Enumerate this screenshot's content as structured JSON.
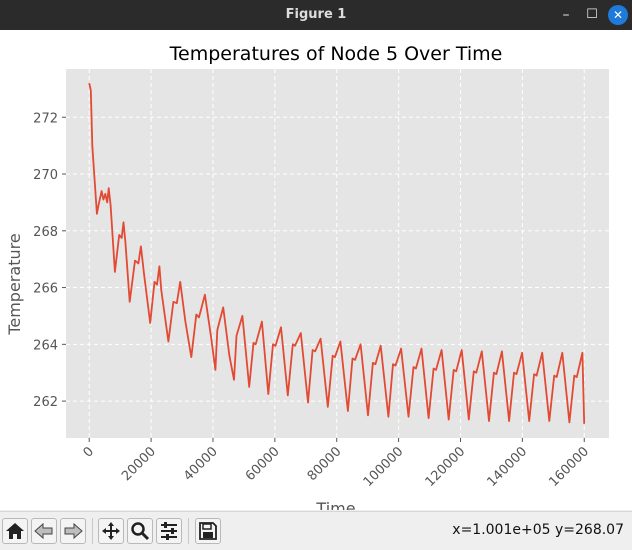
{
  "window": {
    "title": "Figure 1",
    "minimize_label": "–",
    "maximize_label": "☐",
    "close_label": "✕"
  },
  "status": {
    "coordinates": "x=1.001e+05 y=268.07"
  },
  "toolbar": {
    "buttons": [
      {
        "icon": "home-icon"
      },
      {
        "icon": "back-arrow-icon"
      },
      {
        "icon": "forward-arrow-icon"
      },
      {
        "icon": "pan-move-icon"
      },
      {
        "icon": "zoom-icon"
      },
      {
        "icon": "configure-subplots-icon"
      },
      {
        "icon": "save-icon"
      }
    ]
  },
  "chart_data": {
    "type": "line",
    "title": "Temperatures of Node 5 Over Time",
    "xlabel": "Time",
    "ylabel": "Temperature",
    "xlim": [
      -7500,
      168000
    ],
    "ylim": [
      260.7,
      273.7
    ],
    "xticks": [
      0,
      20000,
      40000,
      60000,
      80000,
      100000,
      120000,
      140000,
      160000
    ],
    "yticks": [
      262,
      264,
      266,
      268,
      270,
      272
    ],
    "grid": true,
    "line_color": "#e24a33",
    "background_color": "#e5e5e5",
    "series": [
      {
        "x": [
          0,
          500,
          1000,
          2500,
          3000,
          4000,
          4600,
          5200,
          5800,
          6300,
          6900,
          8300,
          9700,
          10500,
          11100,
          11700,
          13100,
          14800,
          15900,
          16700,
          17800,
          19700,
          21100,
          21900,
          22700,
          23300,
          25600,
          27200,
          28300,
          29400,
          31100,
          33000,
          34600,
          35500,
          37400,
          39400,
          40800,
          41400,
          43300,
          45300,
          46800,
          47600,
          49500,
          51700,
          53100,
          53800,
          55800,
          57900,
          59400,
          60200,
          62000,
          64200,
          65800,
          66500,
          68400,
          70700,
          72200,
          73000,
          74800,
          77100,
          78700,
          79400,
          81200,
          83600,
          85100,
          85900,
          87700,
          90100,
          91700,
          92500,
          94200,
          96700,
          98200,
          99000,
          100800,
          103200,
          104800,
          105600,
          107400,
          109700,
          111300,
          112100,
          113900,
          116200,
          117800,
          118600,
          120400,
          122700,
          124300,
          125100,
          126900,
          129200,
          130800,
          131600,
          133400,
          135700,
          137300,
          138100,
          139900,
          142200,
          143800,
          144600,
          146400,
          148700,
          150300,
          151100,
          152900,
          155200,
          156800,
          157600,
          159400,
          160000
        ],
        "y": [
          273.2,
          272.95,
          271.0,
          268.6,
          268.9,
          269.4,
          269.1,
          269.3,
          269.0,
          269.5,
          268.9,
          266.55,
          267.85,
          267.75,
          268.3,
          267.6,
          265.5,
          266.95,
          266.85,
          267.45,
          266.4,
          264.75,
          266.2,
          266.1,
          266.75,
          265.9,
          264.1,
          265.5,
          265.45,
          266.2,
          264.8,
          263.55,
          265.05,
          264.95,
          265.75,
          264.25,
          263.1,
          264.5,
          265.3,
          263.6,
          262.75,
          264.3,
          265.0,
          262.5,
          264.05,
          264.0,
          264.8,
          262.25,
          264.0,
          263.95,
          264.6,
          262.2,
          264.0,
          263.95,
          264.4,
          261.95,
          263.8,
          263.75,
          264.2,
          261.8,
          263.6,
          263.55,
          264.1,
          261.65,
          263.5,
          263.45,
          264.0,
          261.5,
          263.35,
          263.3,
          263.95,
          261.45,
          263.3,
          263.25,
          263.85,
          261.45,
          263.2,
          263.15,
          263.85,
          261.4,
          263.15,
          263.1,
          263.8,
          261.35,
          263.1,
          263.05,
          263.8,
          261.35,
          263.05,
          263.0,
          263.75,
          261.3,
          263.0,
          262.95,
          263.75,
          261.3,
          263.0,
          262.95,
          263.7,
          261.3,
          262.95,
          262.9,
          263.7,
          261.3,
          262.9,
          262.85,
          263.7,
          261.25,
          262.9,
          262.85,
          263.7,
          261.2
        ]
      }
    ]
  }
}
